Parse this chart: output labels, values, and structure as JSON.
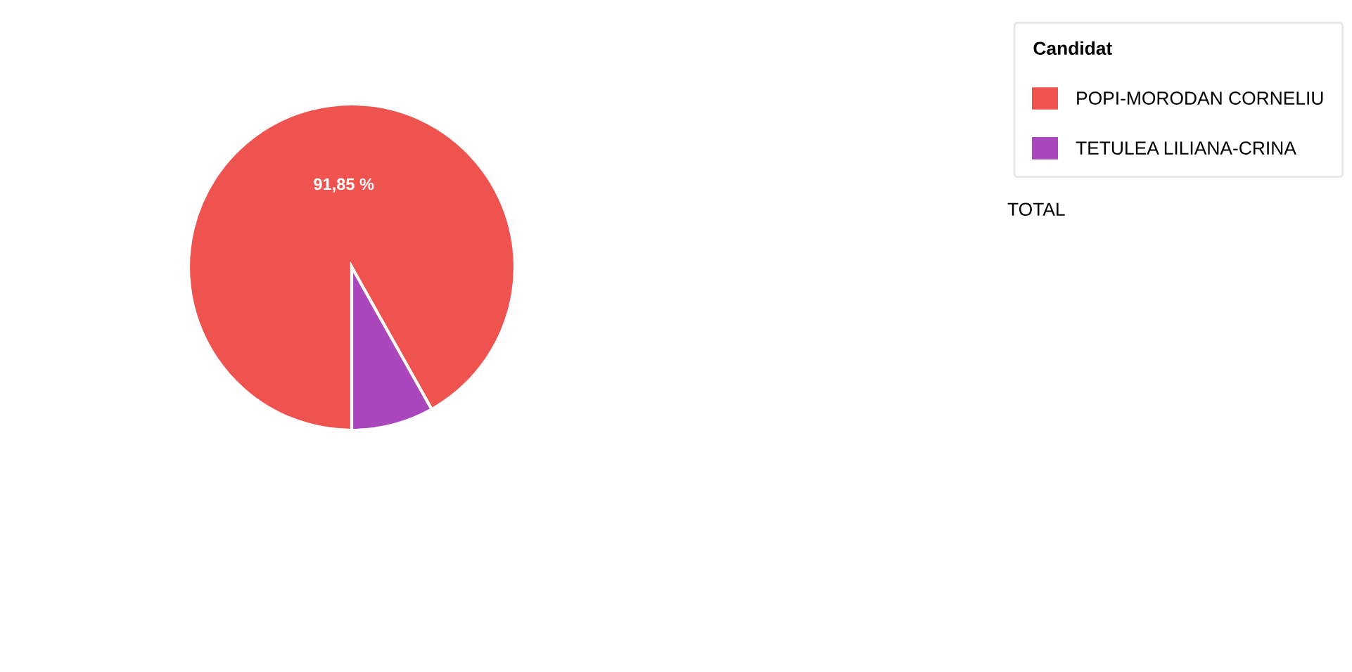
{
  "chart_data": {
    "type": "pie",
    "categories": [
      "POPI-MORODAN CORNELIU",
      "TETULEA LILIANA-CRINA"
    ],
    "values": [
      91.85,
      8.15
    ],
    "colors": [
      "#ef5350",
      "#ab47bc"
    ],
    "value_labels": [
      "91,85 %",
      null
    ],
    "legend_title": "Candidat",
    "legend": "top right",
    "annotations": [
      "TOTAL"
    ]
  }
}
